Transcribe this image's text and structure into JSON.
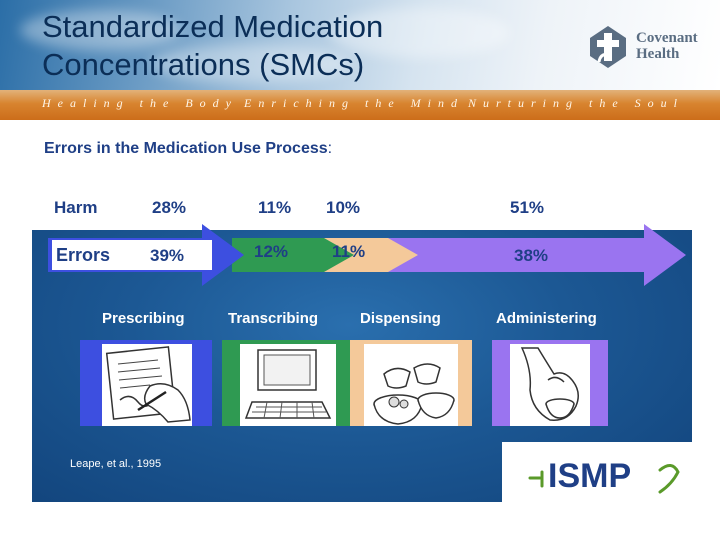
{
  "header": {
    "title_line1": "Standardized Medication",
    "title_line2": "Concentrations (SMCs)",
    "logo_line1": "Covenant",
    "logo_line2": "Health"
  },
  "tagline": {
    "part1": "Healing the Body",
    "part2": "Enriching the Mind",
    "part3": "Nurturing the Soul"
  },
  "subtitle": {
    "text": "Errors in the Medication Use Process",
    "colon": ":"
  },
  "figure": {
    "harm_label": "Harm",
    "errors_label": "Errors",
    "harm_values": [
      "28%",
      "11%",
      "10%",
      "51%"
    ],
    "error_values": [
      "39%",
      "12%",
      "11%",
      "38%"
    ],
    "stages": [
      "Prescribing",
      "Transcribing",
      "Dispensing",
      "Administering"
    ],
    "stage_colors": [
      "#3d4fe0",
      "#2f9a52",
      "#f4c99a",
      "#9a74f0"
    ],
    "citation": "Leape, et al., 1995",
    "ismp_logo": "ISMP"
  }
}
